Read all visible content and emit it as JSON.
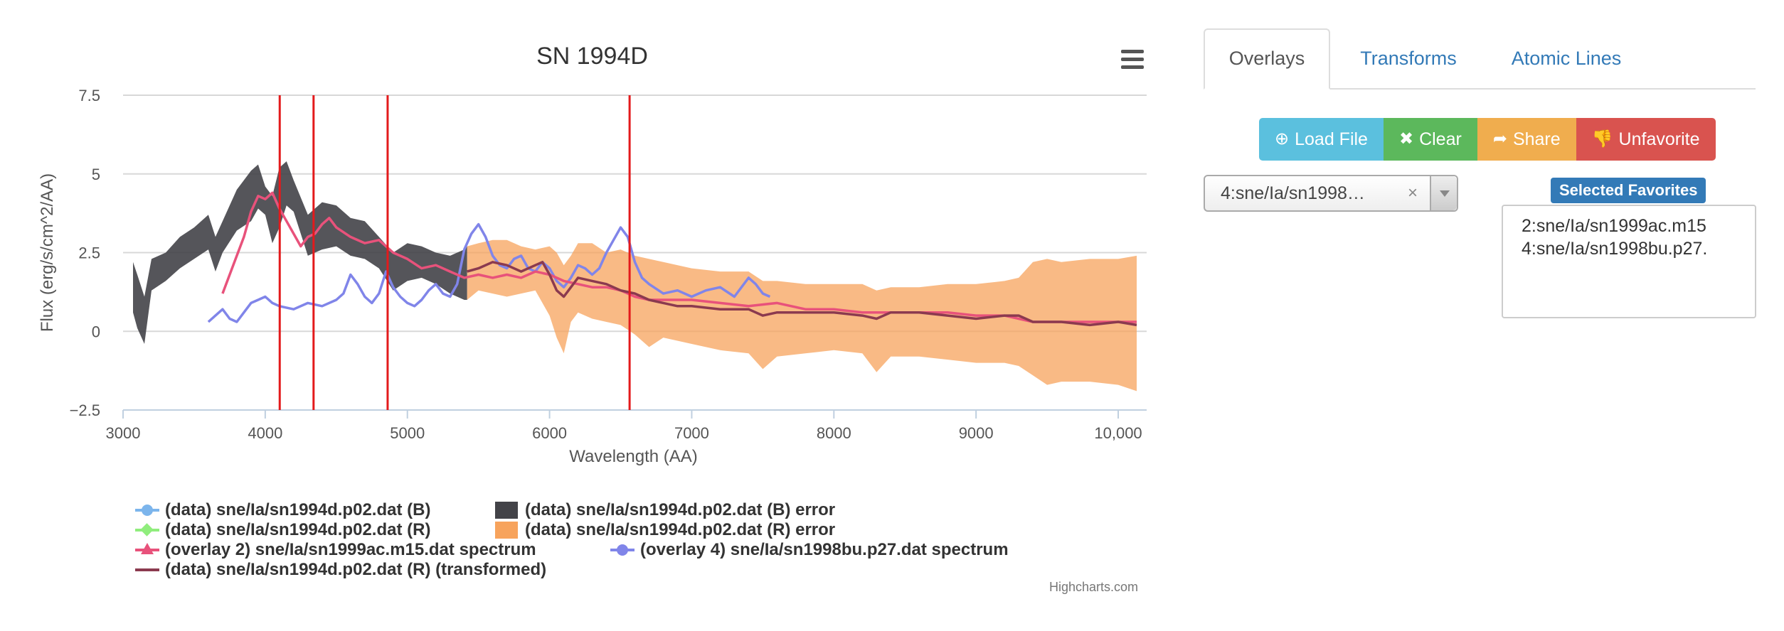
{
  "colors": {
    "b_line": "#7cb5ec",
    "r_line": "#90ed7d",
    "b_error": "#434348",
    "r_error": "#f7a35c",
    "overlay2": "#e8527b",
    "overlay4": "#8085e9",
    "transformed": "#8b3a4f",
    "atomic_lines": "#e31a1c",
    "grid": "#d8d8d8"
  },
  "chart": {
    "menu_icon": "hamburger-menu-icon",
    "credits": "Highcharts.com"
  },
  "chart_data": {
    "type": "line",
    "title": "SN 1994D",
    "xlabel": "Wavelength (AA)",
    "ylabel": "Flux (erg/s/cm^2/AA)",
    "xlim": [
      3000,
      10200
    ],
    "ylim": [
      -2.5,
      7.5
    ],
    "xticks": [
      3000,
      4000,
      5000,
      6000,
      7000,
      8000,
      9000,
      10000
    ],
    "xtick_labels": [
      "3000",
      "4000",
      "5000",
      "6000",
      "7000",
      "8000",
      "9000",
      "10,000"
    ],
    "yticks": [
      -2.5,
      0,
      2.5,
      5,
      7.5
    ],
    "ytick_labels": [
      "−2.5",
      "0",
      "2.5",
      "5",
      "7.5"
    ],
    "grid": true,
    "legend_position": "bottom-left",
    "vertical_lines": [
      4102,
      4340,
      4861,
      6563
    ],
    "series": [
      {
        "name": "(data) sne/Ia/sn1994d.p02.dat (B) error",
        "type": "arearange",
        "x": [
          3070,
          3100,
          3150,
          3200,
          3300,
          3400,
          3500,
          3600,
          3650,
          3700,
          3800,
          3900,
          3950,
          4000,
          4050,
          4100,
          4150,
          4200,
          4300,
          4400,
          4500,
          4600,
          4700,
          4800,
          4900,
          5000,
          5100,
          5200,
          5300,
          5400,
          5420
        ],
        "low": [
          0.6,
          0.1,
          -0.4,
          1.3,
          1.6,
          2.0,
          2.3,
          2.6,
          1.9,
          2.5,
          3.2,
          3.5,
          3.9,
          3.7,
          2.8,
          3.3,
          4.0,
          3.8,
          2.4,
          2.6,
          2.7,
          2.4,
          2.3,
          2.0,
          1.3,
          1.6,
          1.7,
          1.5,
          1.2,
          1.0,
          1.0
        ],
        "high": [
          2.2,
          1.8,
          1.1,
          2.3,
          2.5,
          3.0,
          3.3,
          3.7,
          3.0,
          3.5,
          4.5,
          5.1,
          5.3,
          4.6,
          4.3,
          5.2,
          5.4,
          4.8,
          3.7,
          4.1,
          4.0,
          3.6,
          3.5,
          3.0,
          2.5,
          2.8,
          2.7,
          2.5,
          2.4,
          2.6,
          2.7
        ]
      },
      {
        "name": "(data) sne/Ia/sn1994d.p02.dat (R) error",
        "type": "arearange",
        "x": [
          5420,
          5500,
          5600,
          5700,
          5800,
          5900,
          6000,
          6050,
          6100,
          6150,
          6200,
          6300,
          6400,
          6500,
          6600,
          6700,
          6800,
          7000,
          7200,
          7400,
          7500,
          7600,
          7800,
          8000,
          8200,
          8300,
          8400,
          8600,
          8800,
          9000,
          9200,
          9300,
          9400,
          9500,
          9600,
          9800,
          10000,
          10130
        ],
        "low": [
          1.0,
          1.3,
          1.2,
          1.1,
          1.2,
          1.3,
          0.5,
          -0.2,
          -0.7,
          0.3,
          0.6,
          0.4,
          0.3,
          0.2,
          -0.1,
          -0.5,
          -0.2,
          -0.4,
          -0.6,
          -0.7,
          -1.2,
          -0.8,
          -0.7,
          -0.6,
          -0.7,
          -1.3,
          -0.8,
          -0.8,
          -0.9,
          -1.0,
          -1.0,
          -1.1,
          -1.4,
          -1.7,
          -1.6,
          -1.6,
          -1.7,
          -1.9
        ],
        "high": [
          2.7,
          2.8,
          2.9,
          2.9,
          2.7,
          2.6,
          2.7,
          2.5,
          2.1,
          2.4,
          2.8,
          2.8,
          2.5,
          2.6,
          2.4,
          2.3,
          2.2,
          2.0,
          1.9,
          1.9,
          1.6,
          1.6,
          1.5,
          1.5,
          1.5,
          1.3,
          1.4,
          1.4,
          1.5,
          1.5,
          1.6,
          1.7,
          2.2,
          2.3,
          2.2,
          2.3,
          2.3,
          2.4
        ]
      },
      {
        "name": "(overlay 4) sne/Ia/sn1998bu.p27.dat spectrum",
        "type": "line",
        "x": [
          3600,
          3650,
          3700,
          3750,
          3800,
          3850,
          3900,
          3950,
          4000,
          4050,
          4100,
          4200,
          4300,
          4400,
          4500,
          4550,
          4600,
          4650,
          4700,
          4750,
          4800,
          4850,
          4900,
          4950,
          5000,
          5050,
          5100,
          5150,
          5200,
          5250,
          5300,
          5350,
          5400,
          5450,
          5500,
          5550,
          5600,
          5650,
          5700,
          5750,
          5800,
          5850,
          5900,
          5950,
          6000,
          6050,
          6100,
          6150,
          6200,
          6250,
          6300,
          6350,
          6400,
          6450,
          6500,
          6550,
          6600,
          6650,
          6700,
          6800,
          6900,
          7000,
          7100,
          7200,
          7300,
          7400,
          7450,
          7500,
          7550
        ],
        "y": [
          0.3,
          0.5,
          0.7,
          0.4,
          0.3,
          0.6,
          0.9,
          1.0,
          1.1,
          0.9,
          0.8,
          0.7,
          0.9,
          0.8,
          1.0,
          1.2,
          1.8,
          1.5,
          1.1,
          0.9,
          1.2,
          1.9,
          1.4,
          1.1,
          0.9,
          0.8,
          1.0,
          1.3,
          1.5,
          1.2,
          1.1,
          1.5,
          2.6,
          3.1,
          3.4,
          3.0,
          2.4,
          2.1,
          2.0,
          2.3,
          2.4,
          2.0,
          1.9,
          2.2,
          2.0,
          1.6,
          1.4,
          1.7,
          2.1,
          2.0,
          1.8,
          2.0,
          2.5,
          2.9,
          3.3,
          3.0,
          2.2,
          1.7,
          1.5,
          1.2,
          1.3,
          1.1,
          1.3,
          1.4,
          1.1,
          1.7,
          1.5,
          1.2,
          1.1
        ]
      },
      {
        "name": "(overlay 2) sne/Ia/sn1999ac.m15.dat spectrum",
        "type": "line",
        "x": [
          3700,
          3750,
          3800,
          3850,
          3900,
          3950,
          4000,
          4050,
          4100,
          4150,
          4200,
          4250,
          4300,
          4350,
          4400,
          4450,
          4500,
          4600,
          4700,
          4800,
          4900,
          5000,
          5100,
          5200,
          5300,
          5400,
          5500,
          5600,
          5700,
          5800,
          5900,
          6000,
          6100,
          6200,
          6300,
          6400,
          6500,
          6600,
          6700,
          6800,
          7000,
          7200,
          7400,
          7600,
          7800,
          8000,
          8200,
          8400,
          8600,
          8800,
          9000,
          9200,
          9400,
          9600,
          9800,
          10000,
          10130
        ],
        "y": [
          1.2,
          1.8,
          2.4,
          3.0,
          3.8,
          4.3,
          4.2,
          4.4,
          3.9,
          3.5,
          3.1,
          2.7,
          3.0,
          3.1,
          3.4,
          3.6,
          3.3,
          3.0,
          2.8,
          2.9,
          2.5,
          2.3,
          2.0,
          2.1,
          1.9,
          1.7,
          1.8,
          1.7,
          1.8,
          1.7,
          1.9,
          1.8,
          1.6,
          1.5,
          1.4,
          1.4,
          1.3,
          1.1,
          1.0,
          1.0,
          1.0,
          0.9,
          0.8,
          0.9,
          0.7,
          0.7,
          0.6,
          0.6,
          0.6,
          0.6,
          0.5,
          0.5,
          0.3,
          0.3,
          0.3,
          0.3,
          0.3
        ]
      },
      {
        "name": "(data) sne/Ia/sn1994d.p02.dat (R) (transformed)",
        "type": "line",
        "x": [
          5420,
          5500,
          5600,
          5700,
          5800,
          5900,
          5950,
          6000,
          6050,
          6100,
          6150,
          6200,
          6300,
          6400,
          6500,
          6600,
          6700,
          6800,
          6900,
          7000,
          7200,
          7400,
          7500,
          7600,
          7800,
          8000,
          8200,
          8300,
          8400,
          8600,
          8800,
          9000,
          9200,
          9300,
          9400,
          9600,
          9800,
          10000,
          10130
        ],
        "y": [
          1.9,
          2.0,
          2.2,
          2.1,
          1.9,
          2.1,
          2.2,
          1.8,
          1.3,
          1.1,
          1.4,
          1.7,
          1.6,
          1.5,
          1.3,
          1.2,
          1.0,
          0.9,
          0.8,
          0.8,
          0.7,
          0.7,
          0.5,
          0.6,
          0.6,
          0.6,
          0.5,
          0.4,
          0.6,
          0.6,
          0.5,
          0.4,
          0.5,
          0.5,
          0.3,
          0.3,
          0.2,
          0.3,
          0.2
        ]
      }
    ],
    "legend": [
      {
        "label": "(data) sne/Ia/sn1994d.p02.dat (B)",
        "symbol": "line-circle",
        "color": "#7cb5ec"
      },
      {
        "label": "(data) sne/Ia/sn1994d.p02.dat (B) error",
        "symbol": "box",
        "color": "#434348"
      },
      {
        "label": "(data) sne/Ia/sn1994d.p02.dat (R)",
        "symbol": "line-diamond",
        "color": "#90ed7d"
      },
      {
        "label": "(data) sne/Ia/sn1994d.p02.dat (R) error",
        "symbol": "box",
        "color": "#f7a35c"
      },
      {
        "label": "(overlay 2) sne/Ia/sn1999ac.m15.dat spectrum",
        "symbol": "line-triangle",
        "color": "#e8527b"
      },
      {
        "label": "(overlay 4) sne/Ia/sn1998bu.p27.dat spectrum",
        "symbol": "line-circle",
        "color": "#8085e9"
      },
      {
        "label": "(data) sne/Ia/sn1994d.p02.dat (R) (transformed)",
        "symbol": "line",
        "color": "#8b3a4f"
      }
    ]
  },
  "panel": {
    "tabs": [
      {
        "label": "Overlays",
        "active": true
      },
      {
        "label": "Transforms",
        "active": false
      },
      {
        "label": "Atomic Lines",
        "active": false
      }
    ],
    "buttons": [
      {
        "label": "Load File",
        "icon": "download-circle-icon"
      },
      {
        "label": "Clear",
        "icon": "close-icon"
      },
      {
        "label": "Share",
        "icon": "share-arrow-icon"
      },
      {
        "label": "Unfavorite",
        "icon": "thumbs-down-icon"
      }
    ],
    "select": {
      "value": "4:sne/Ia/sn1998…",
      "clear_icon": "clear-x-icon",
      "arrow_icon": "dropdown-arrow-icon"
    },
    "favorites": {
      "label": "Selected Favorites",
      "items": [
        "2:sne/Ia/sn1999ac.m15",
        "4:sne/Ia/sn1998bu.p27."
      ]
    }
  }
}
